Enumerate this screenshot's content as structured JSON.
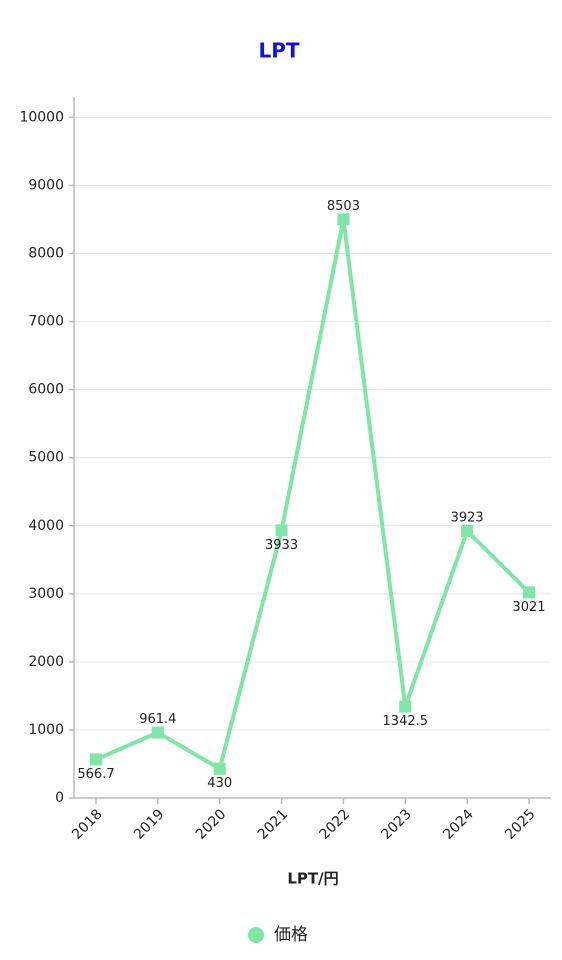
{
  "chart_data": {
    "type": "line",
    "title": "LPT",
    "x_label": "LPT/円",
    "categories": [
      "2018",
      "2019",
      "2020",
      "2021",
      "2022",
      "2023",
      "2024",
      "2025"
    ],
    "series": [
      {
        "name": "価格",
        "color": "#80e6a6",
        "values": [
          566.7,
          961.4,
          430,
          3933,
          8503,
          1342.5,
          3923,
          3021
        ]
      }
    ],
    "ylim": [
      0,
      10300
    ],
    "yticks": [
      0,
      1000,
      2000,
      3000,
      4000,
      5000,
      6000,
      7000,
      8000,
      9000,
      10000
    ],
    "grid": true,
    "legend": "bottom"
  }
}
